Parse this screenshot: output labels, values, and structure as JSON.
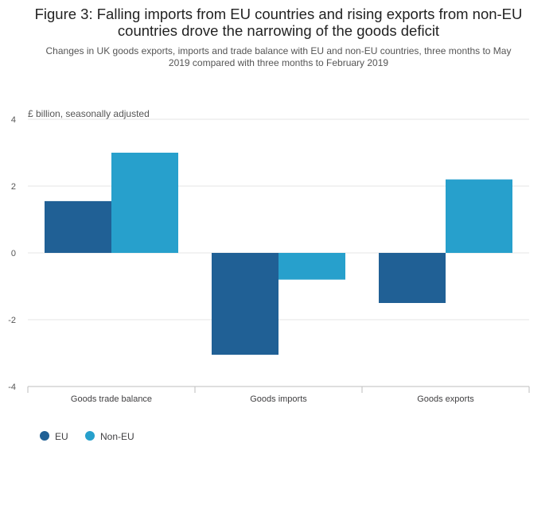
{
  "chart_data": {
    "type": "bar",
    "title": "Figure 3: Falling imports from EU countries and rising exports from non-EU\ncountries drove the narrowing of the goods deficit",
    "subtitle": "Changes in UK goods exports, imports and trade balance with EU and non-EU countries, three months to May\n2019 compared with three months to February 2019",
    "ylabel": "£ billion, seasonally adjusted",
    "xlabel": "",
    "categories": [
      "Goods trade balance",
      "Goods imports",
      "Goods exports"
    ],
    "series": [
      {
        "name": "EU",
        "color": "#206095",
        "values": [
          1.55,
          -3.05,
          -1.5
        ]
      },
      {
        "name": "Non-EU",
        "color": "#27a0cc",
        "values": [
          3.0,
          -0.8,
          2.2
        ]
      }
    ],
    "ylim": [
      -4,
      4
    ],
    "yticks": [
      4,
      2,
      0,
      -2,
      -4
    ],
    "ytick_labels": [
      "4",
      "2",
      "0",
      "-2",
      "-4"
    ],
    "grid": true,
    "legend_position": "bottom-left"
  }
}
